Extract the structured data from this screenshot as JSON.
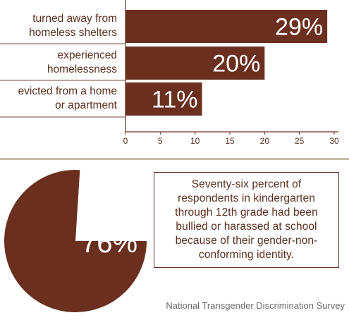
{
  "chart_data": [
    {
      "type": "bar",
      "orientation": "horizontal",
      "categories": [
        "turned away from homeless shelters",
        "experienced homelessness",
        "evicted from a home or apartment"
      ],
      "category_lines": [
        [
          "turned away from",
          "homeless shelters"
        ],
        [
          "experienced",
          "homelessness"
        ],
        [
          "evicted from a home",
          "or apartment"
        ]
      ],
      "values": [
        29,
        20,
        11
      ],
      "data_labels": [
        "29%",
        "20%",
        "11%"
      ],
      "xlim": [
        0,
        30
      ],
      "xticks": [
        "0",
        "5",
        "10",
        "15",
        "20",
        "25",
        "30"
      ],
      "xlabel": "",
      "ylabel": "",
      "grid": false,
      "colors": {
        "bar": "#6b2f1f",
        "axis": "#6b2f1f",
        "label_text": "#ffffff"
      }
    },
    {
      "type": "pie",
      "values": [
        76,
        24
      ],
      "data_label": "76%",
      "colors": {
        "slice": "#6b2f1f",
        "remainder": "#ffffff"
      }
    }
  ],
  "stat_text": "Seventy-six percent of respondents in kindergarten through 12th grade had been bullied or harassed at school because of their gender-non-conforming identity.",
  "source": "National Transgender Discrimination Survey"
}
